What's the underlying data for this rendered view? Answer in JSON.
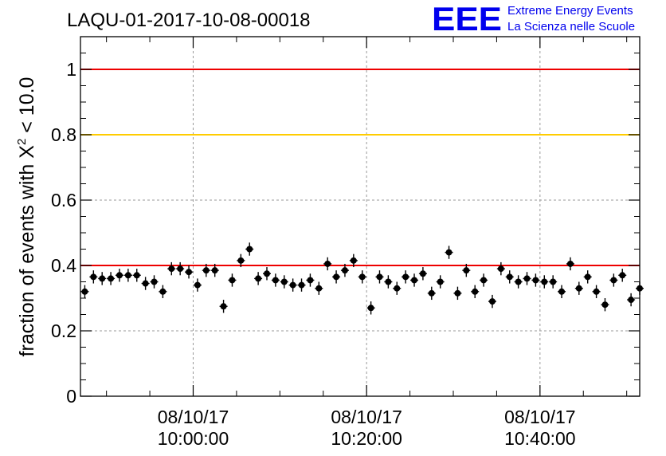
{
  "header": {
    "run_title": "LAQU-01-2017-10-08-00018",
    "logo_text": "EEE",
    "logo_line1": "Extreme Energy Events",
    "logo_line2": "La Scienza nelle Scuole",
    "logo_color": "#0000ee"
  },
  "chart_data": {
    "type": "scatter",
    "title": "LAQU-01-2017-10-08-00018",
    "xlabel": "",
    "ylabel": "fraction of events with X² < 10.0",
    "ylabel_parts": {
      "before": "fraction of events with X",
      "sup": "2",
      "after": " < 10.0"
    },
    "ylim": [
      0,
      1.1
    ],
    "xlim": [
      "2017-10-08 09:47:00",
      "2017-10-08 10:51:30"
    ],
    "yticks": [
      {
        "value": 0,
        "label": "0"
      },
      {
        "value": 0.2,
        "label": "0.2"
      },
      {
        "value": 0.4,
        "label": "0.4"
      },
      {
        "value": 0.6,
        "label": "0.6"
      },
      {
        "value": 0.8,
        "label": "0.8"
      },
      {
        "value": 1,
        "label": "1"
      }
    ],
    "xticks": [
      {
        "time": "2017-10-08 10:00:00",
        "date_label": "08/10/17",
        "time_label": "10:00:00"
      },
      {
        "time": "2017-10-08 10:20:00",
        "date_label": "08/10/17",
        "time_label": "10:20:00"
      },
      {
        "time": "2017-10-08 10:40:00",
        "date_label": "08/10/17",
        "time_label": "10:40:00"
      }
    ],
    "grid": true,
    "reference_lines": [
      {
        "y": 1.0,
        "color": "#ee0000"
      },
      {
        "y": 0.8,
        "color": "#ffcc00"
      },
      {
        "y": 0.4,
        "color": "#ee0000"
      }
    ],
    "series": [
      {
        "marker_color": "#000000",
        "x": [
          "2017-10-08 09:47:30",
          "2017-10-08 09:48:30",
          "2017-10-08 09:49:30",
          "2017-10-08 09:50:30",
          "2017-10-08 09:51:30",
          "2017-10-08 09:52:30",
          "2017-10-08 09:53:30",
          "2017-10-08 09:54:30",
          "2017-10-08 09:55:30",
          "2017-10-08 09:56:30",
          "2017-10-08 09:57:30",
          "2017-10-08 09:58:30",
          "2017-10-08 09:59:30",
          "2017-10-08 10:00:30",
          "2017-10-08 10:01:30",
          "2017-10-08 10:02:30",
          "2017-10-08 10:03:30",
          "2017-10-08 10:04:30",
          "2017-10-08 10:05:30",
          "2017-10-08 10:06:30",
          "2017-10-08 10:07:30",
          "2017-10-08 10:08:30",
          "2017-10-08 10:09:30",
          "2017-10-08 10:10:30",
          "2017-10-08 10:11:30",
          "2017-10-08 10:12:30",
          "2017-10-08 10:13:30",
          "2017-10-08 10:14:30",
          "2017-10-08 10:15:30",
          "2017-10-08 10:16:30",
          "2017-10-08 10:17:30",
          "2017-10-08 10:18:30",
          "2017-10-08 10:19:30",
          "2017-10-08 10:20:30",
          "2017-10-08 10:21:30",
          "2017-10-08 10:22:30",
          "2017-10-08 10:23:30",
          "2017-10-08 10:24:30",
          "2017-10-08 10:25:30",
          "2017-10-08 10:26:30",
          "2017-10-08 10:27:30",
          "2017-10-08 10:28:30",
          "2017-10-08 10:29:30",
          "2017-10-08 10:30:30",
          "2017-10-08 10:31:30",
          "2017-10-08 10:32:30",
          "2017-10-08 10:33:30",
          "2017-10-08 10:34:30",
          "2017-10-08 10:35:30",
          "2017-10-08 10:36:30",
          "2017-10-08 10:37:30",
          "2017-10-08 10:38:30",
          "2017-10-08 10:39:30",
          "2017-10-08 10:40:30",
          "2017-10-08 10:41:30",
          "2017-10-08 10:42:30",
          "2017-10-08 10:43:30",
          "2017-10-08 10:44:30",
          "2017-10-08 10:45:30",
          "2017-10-08 10:46:30",
          "2017-10-08 10:47:30",
          "2017-10-08 10:48:30",
          "2017-10-08 10:49:30",
          "2017-10-08 10:50:30",
          "2017-10-08 10:51:30"
        ],
        "y": [
          0.32,
          0.365,
          0.36,
          0.36,
          0.37,
          0.37,
          0.37,
          0.345,
          0.35,
          0.32,
          0.39,
          0.39,
          0.38,
          0.34,
          0.385,
          0.385,
          0.275,
          0.355,
          0.415,
          0.45,
          0.36,
          0.375,
          0.355,
          0.35,
          0.34,
          0.34,
          0.355,
          0.33,
          0.405,
          0.365,
          0.385,
          0.415,
          0.365,
          0.27,
          0.365,
          0.35,
          0.33,
          0.365,
          0.355,
          0.375,
          0.315,
          0.35,
          0.44,
          0.315,
          0.385,
          0.32,
          0.355,
          0.29,
          0.39,
          0.365,
          0.35,
          0.36,
          0.355,
          0.35,
          0.35,
          0.32,
          0.405,
          0.33,
          0.365,
          0.32,
          0.28,
          0.355,
          0.37,
          0.295,
          0.33
        ],
        "y_error": 0.02
      }
    ]
  }
}
